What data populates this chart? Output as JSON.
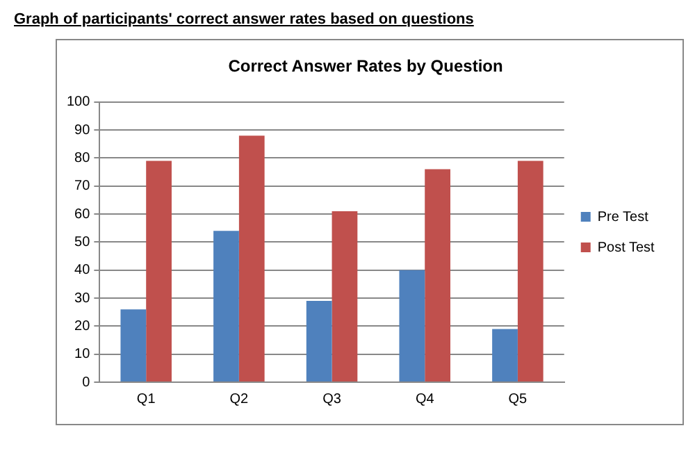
{
  "chart_data": {
    "type": "bar",
    "title": "Correct Answer Rates by Question",
    "annotations": [
      "Graph of participants' correct answer rates based on questions"
    ],
    "categories": [
      "Q1",
      "Q2",
      "Q3",
      "Q4",
      "Q5"
    ],
    "series": [
      {
        "name": "Pre Test",
        "color": "#4f81bd",
        "values": [
          26,
          54,
          29,
          40,
          19
        ]
      },
      {
        "name": "Post Test",
        "color": "#c0504d",
        "values": [
          79,
          88,
          61,
          76,
          79
        ]
      }
    ],
    "ylim": [
      0,
      100
    ],
    "yticks": [
      0,
      10,
      20,
      30,
      40,
      50,
      60,
      70,
      80,
      90,
      100
    ],
    "grid": "y",
    "legend": "right"
  }
}
